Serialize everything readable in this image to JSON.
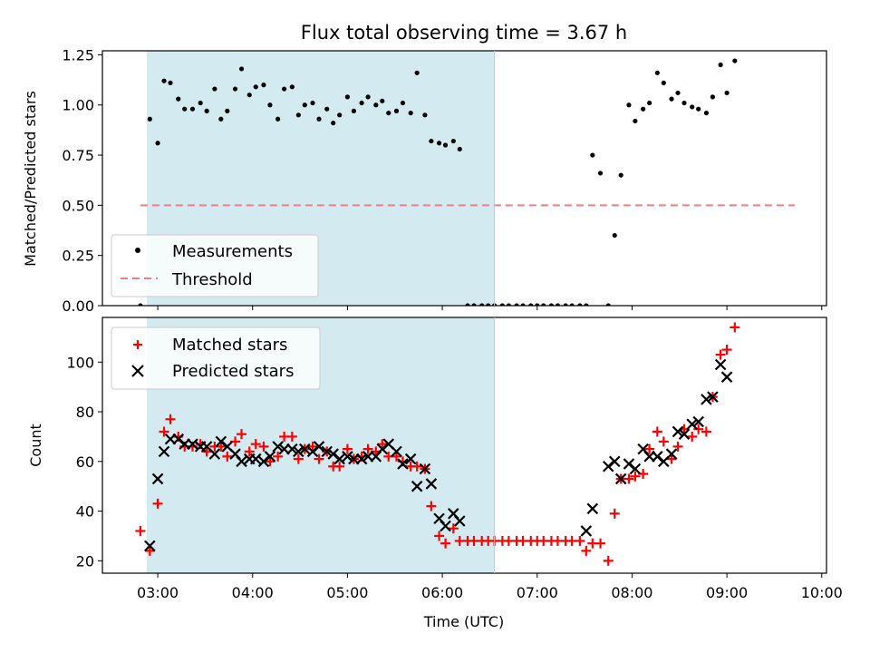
{
  "chart_data": [
    {
      "type": "scatter",
      "title": "Flux total observing time = 3.67 h",
      "xlabel": "",
      "ylabel": "Matched/Predicted stars",
      "xlim": [
        "02:25",
        "10:03"
      ],
      "ylim": [
        0,
        1.27
      ],
      "yticks": [
        "0.00",
        "0.25",
        "0.50",
        "0.75",
        "1.00",
        "1.25"
      ],
      "grid": false,
      "legend_position": "lower-left",
      "shaded_interval": {
        "start": "02:53",
        "end": "06:33",
        "color": "#d3eaf0"
      },
      "threshold": {
        "name": "Threshold",
        "value": 0.5,
        "from": "02:49",
        "to": "09:43",
        "color": "#f08080",
        "style": "dashed"
      },
      "series": [
        {
          "name": "Measurements",
          "color": "#000000",
          "marker": "dot",
          "points": [
            [
              "02:49",
              0.0
            ],
            [
              "02:55",
              0.93
            ],
            [
              "03:00",
              0.81
            ],
            [
              "03:04",
              1.12
            ],
            [
              "03:08",
              1.11
            ],
            [
              "03:13",
              1.03
            ],
            [
              "03:17",
              0.98
            ],
            [
              "03:22",
              0.98
            ],
            [
              "03:27",
              1.01
            ],
            [
              "03:31",
              0.97
            ],
            [
              "03:36",
              1.08
            ],
            [
              "03:40",
              0.93
            ],
            [
              "03:44",
              0.97
            ],
            [
              "03:49",
              1.08
            ],
            [
              "03:53",
              1.18
            ],
            [
              "03:58",
              1.05
            ],
            [
              "04:02",
              1.09
            ],
            [
              "04:07",
              1.1
            ],
            [
              "04:11",
              1.0
            ],
            [
              "04:16",
              0.93
            ],
            [
              "04:20",
              1.08
            ],
            [
              "04:25",
              1.09
            ],
            [
              "04:29",
              0.95
            ],
            [
              "04:33",
              1.0
            ],
            [
              "04:38",
              1.01
            ],
            [
              "04:42",
              0.93
            ],
            [
              "04:47",
              0.98
            ],
            [
              "04:51",
              0.91
            ],
            [
              "04:55",
              0.95
            ],
            [
              "05:00",
              1.04
            ],
            [
              "05:04",
              0.97
            ],
            [
              "05:09",
              1.01
            ],
            [
              "05:13",
              1.04
            ],
            [
              "05:18",
              1.0
            ],
            [
              "05:22",
              1.02
            ],
            [
              "05:26",
              0.96
            ],
            [
              "05:31",
              0.97
            ],
            [
              "05:35",
              1.01
            ],
            [
              "05:40",
              0.96
            ],
            [
              "05:44",
              1.16
            ],
            [
              "05:49",
              0.95
            ],
            [
              "05:53",
              0.82
            ],
            [
              "05:58",
              0.81
            ],
            [
              "06:02",
              0.8
            ],
            [
              "06:07",
              0.82
            ],
            [
              "06:11",
              0.78
            ],
            [
              "06:16",
              0.0
            ],
            [
              "06:20",
              0.0
            ],
            [
              "06:25",
              0.0
            ],
            [
              "06:29",
              0.0
            ],
            [
              "06:33",
              0.0
            ],
            [
              "06:38",
              0.0
            ],
            [
              "06:42",
              0.0
            ],
            [
              "06:47",
              0.0
            ],
            [
              "06:51",
              0.0
            ],
            [
              "06:56",
              0.0
            ],
            [
              "07:00",
              0.0
            ],
            [
              "07:04",
              0.0
            ],
            [
              "07:09",
              0.0
            ],
            [
              "07:13",
              0.0
            ],
            [
              "07:18",
              0.0
            ],
            [
              "07:22",
              0.0
            ],
            [
              "07:27",
              0.0
            ],
            [
              "07:31",
              0.0
            ],
            [
              "07:35",
              0.75
            ],
            [
              "07:40",
              0.66
            ],
            [
              "07:45",
              0.0
            ],
            [
              "07:49",
              0.35
            ],
            [
              "07:53",
              0.65
            ],
            [
              "07:58",
              1.0
            ],
            [
              "08:02",
              0.92
            ],
            [
              "08:07",
              0.98
            ],
            [
              "08:11",
              1.01
            ],
            [
              "08:16",
              1.16
            ],
            [
              "08:20",
              1.11
            ],
            [
              "08:25",
              1.03
            ],
            [
              "08:29",
              1.06
            ],
            [
              "08:33",
              1.01
            ],
            [
              "08:38",
              0.99
            ],
            [
              "08:42",
              0.98
            ],
            [
              "08:47",
              0.96
            ],
            [
              "08:51",
              1.04
            ],
            [
              "08:56",
              1.2
            ],
            [
              "09:00",
              1.06
            ],
            [
              "09:05",
              1.22
            ]
          ]
        }
      ]
    },
    {
      "type": "scatter",
      "title": "",
      "xlabel": "Time (UTC)",
      "ylabel": "Count",
      "xlim": [
        "02:25",
        "10:03"
      ],
      "ylim": [
        15,
        118
      ],
      "yticks": [
        "20",
        "40",
        "60",
        "80",
        "100"
      ],
      "xticks": [
        "03:00",
        "04:00",
        "05:00",
        "06:00",
        "07:00",
        "08:00",
        "09:00",
        "10:00"
      ],
      "grid": false,
      "legend_position": "top-left",
      "shaded_interval": {
        "start": "02:53",
        "end": "06:33",
        "color": "#d3eaf0"
      },
      "series": [
        {
          "name": "Matched stars",
          "color": "#ff0000",
          "marker": "plus",
          "points": [
            [
              "02:49",
              32
            ],
            [
              "02:55",
              24
            ],
            [
              "03:00",
              43
            ],
            [
              "03:04",
              72
            ],
            [
              "03:08",
              77
            ],
            [
              "03:13",
              70
            ],
            [
              "03:17",
              66
            ],
            [
              "03:22",
              66
            ],
            [
              "03:27",
              67
            ],
            [
              "03:31",
              64
            ],
            [
              "03:36",
              66
            ],
            [
              "03:40",
              66
            ],
            [
              "03:44",
              62
            ],
            [
              "03:49",
              68
            ],
            [
              "03:53",
              71
            ],
            [
              "03:58",
              64
            ],
            [
              "04:02",
              67
            ],
            [
              "04:07",
              66
            ],
            [
              "04:11",
              60
            ],
            [
              "04:16",
              62
            ],
            [
              "04:20",
              70
            ],
            [
              "04:25",
              70
            ],
            [
              "04:29",
              61
            ],
            [
              "04:33",
              65
            ],
            [
              "04:38",
              66
            ],
            [
              "04:42",
              61
            ],
            [
              "04:47",
              64
            ],
            [
              "04:51",
              58
            ],
            [
              "04:55",
              58
            ],
            [
              "05:00",
              65
            ],
            [
              "05:04",
              61
            ],
            [
              "05:09",
              62
            ],
            [
              "05:13",
              65
            ],
            [
              "05:18",
              64
            ],
            [
              "05:22",
              67
            ],
            [
              "05:26",
              62
            ],
            [
              "05:31",
              62
            ],
            [
              "05:35",
              60
            ],
            [
              "05:40",
              58
            ],
            [
              "05:44",
              58
            ],
            [
              "05:49",
              57
            ],
            [
              "05:53",
              42
            ],
            [
              "05:58",
              30
            ],
            [
              "06:02",
              27
            ],
            [
              "06:07",
              33
            ],
            [
              "06:11",
              28
            ],
            [
              "06:16",
              28
            ],
            [
              "06:20",
              28
            ],
            [
              "06:25",
              28
            ],
            [
              "06:29",
              28
            ],
            [
              "06:33",
              28
            ],
            [
              "06:38",
              28
            ],
            [
              "06:42",
              28
            ],
            [
              "06:47",
              28
            ],
            [
              "06:51",
              28
            ],
            [
              "06:56",
              28
            ],
            [
              "07:00",
              28
            ],
            [
              "07:04",
              28
            ],
            [
              "07:09",
              28
            ],
            [
              "07:13",
              28
            ],
            [
              "07:18",
              28
            ],
            [
              "07:22",
              28
            ],
            [
              "07:27",
              28
            ],
            [
              "07:31",
              24
            ],
            [
              "07:35",
              27
            ],
            [
              "07:40",
              27
            ],
            [
              "07:45",
              20
            ],
            [
              "07:49",
              39
            ],
            [
              "07:53",
              53
            ],
            [
              "07:58",
              53
            ],
            [
              "08:02",
              54
            ],
            [
              "08:07",
              55
            ],
            [
              "08:11",
              65
            ],
            [
              "08:16",
              72
            ],
            [
              "08:20",
              68
            ],
            [
              "08:25",
              61
            ],
            [
              "08:29",
              66
            ],
            [
              "08:33",
              73
            ],
            [
              "08:38",
              70
            ],
            [
              "08:42",
              73
            ],
            [
              "08:47",
              72
            ],
            [
              "08:51",
              86
            ],
            [
              "08:56",
              103
            ],
            [
              "09:00",
              105
            ],
            [
              "09:05",
              114
            ]
          ]
        },
        {
          "name": "Predicted stars",
          "color": "#000000",
          "marker": "x",
          "points": [
            [
              "02:55",
              26
            ],
            [
              "03:00",
              53
            ],
            [
              "03:04",
              64
            ],
            [
              "03:08",
              69
            ],
            [
              "03:13",
              69
            ],
            [
              "03:17",
              67
            ],
            [
              "03:22",
              67
            ],
            [
              "03:27",
              66
            ],
            [
              "03:31",
              66
            ],
            [
              "03:36",
              63
            ],
            [
              "03:40",
              68
            ],
            [
              "03:44",
              66
            ],
            [
              "03:49",
              63
            ],
            [
              "03:53",
              60
            ],
            [
              "03:58",
              61
            ],
            [
              "04:02",
              61
            ],
            [
              "04:07",
              60
            ],
            [
              "04:11",
              62
            ],
            [
              "04:16",
              66
            ],
            [
              "04:20",
              65
            ],
            [
              "04:25",
              65
            ],
            [
              "04:29",
              64
            ],
            [
              "04:33",
              65
            ],
            [
              "04:38",
              64
            ],
            [
              "04:42",
              66
            ],
            [
              "04:47",
              64
            ],
            [
              "04:51",
              63
            ],
            [
              "04:55",
              61
            ],
            [
              "05:00",
              62
            ],
            [
              "05:04",
              61
            ],
            [
              "05:09",
              61
            ],
            [
              "05:13",
              62
            ],
            [
              "05:18",
              62
            ],
            [
              "05:22",
              65
            ],
            [
              "05:26",
              67
            ],
            [
              "05:31",
              64
            ],
            [
              "05:35",
              59
            ],
            [
              "05:40",
              61
            ],
            [
              "05:44",
              50
            ],
            [
              "05:49",
              57
            ],
            [
              "05:53",
              51
            ],
            [
              "05:58",
              37
            ],
            [
              "06:02",
              34
            ],
            [
              "06:07",
              39
            ],
            [
              "06:11",
              36
            ],
            [
              "07:31",
              32
            ],
            [
              "07:35",
              41
            ],
            [
              "07:45",
              58
            ],
            [
              "07:49",
              60
            ],
            [
              "07:53",
              53
            ],
            [
              "07:58",
              59
            ],
            [
              "08:02",
              57
            ],
            [
              "08:07",
              65
            ],
            [
              "08:11",
              62
            ],
            [
              "08:16",
              62
            ],
            [
              "08:20",
              60
            ],
            [
              "08:25",
              63
            ],
            [
              "08:29",
              72
            ],
            [
              "08:33",
              71
            ],
            [
              "08:38",
              75
            ],
            [
              "08:42",
              76
            ],
            [
              "08:47",
              85
            ],
            [
              "08:51",
              86
            ],
            [
              "08:56",
              99
            ],
            [
              "09:00",
              94
            ]
          ]
        }
      ]
    }
  ]
}
